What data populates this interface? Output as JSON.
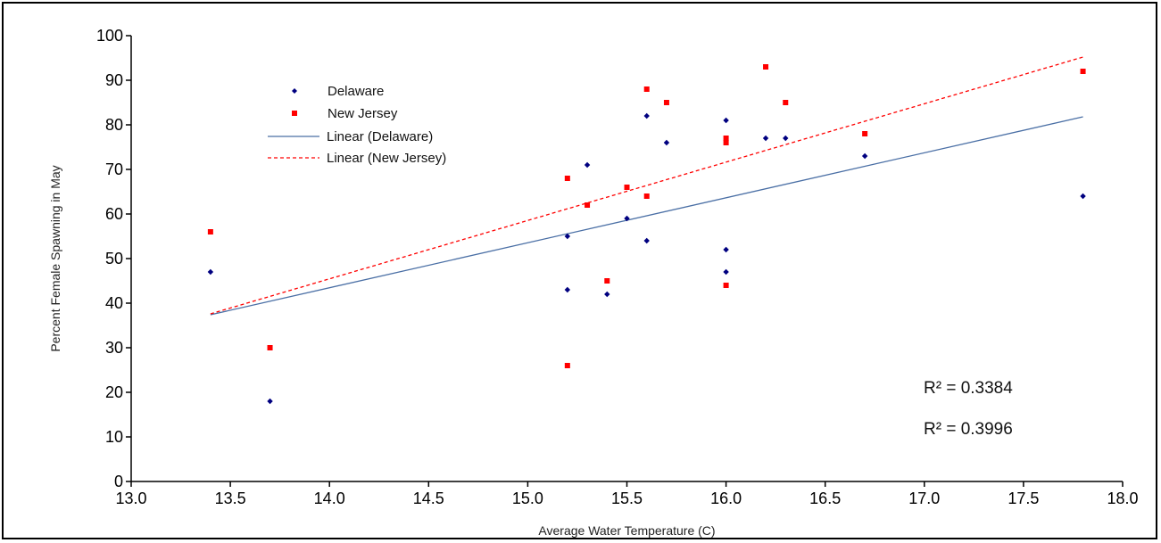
{
  "chart_data": {
    "type": "scatter",
    "title": "",
    "xlabel": "Average Water Temperature  (C)",
    "ylabel": "Percent Female Spawning in May",
    "xlim": [
      13.0,
      18.0
    ],
    "ylim": [
      0,
      100
    ],
    "x_ticks": [
      13.0,
      13.5,
      14.0,
      14.5,
      15.0,
      15.5,
      16.0,
      16.5,
      17.0,
      17.5,
      18.0
    ],
    "x_tick_labels": [
      "13.0",
      "13.5",
      "14.0",
      "14.5",
      "15.0",
      "15.5",
      "16.0",
      "16.5",
      "17.0",
      "17.5",
      "18.0"
    ],
    "y_ticks": [
      0,
      10,
      20,
      30,
      40,
      50,
      60,
      70,
      80,
      90,
      100
    ],
    "y_tick_labels": [
      "0",
      "10",
      "20",
      "30",
      "40",
      "50",
      "60",
      "70",
      "80",
      "90",
      "100"
    ],
    "grid": false,
    "legend_position": "top-left",
    "series": [
      {
        "name": "Delaware",
        "marker": "diamond",
        "color": "#000080",
        "points": [
          [
            13.4,
            47
          ],
          [
            13.7,
            18
          ],
          [
            15.2,
            55
          ],
          [
            15.2,
            43
          ],
          [
            15.3,
            71
          ],
          [
            15.4,
            42
          ],
          [
            15.5,
            59
          ],
          [
            15.6,
            82
          ],
          [
            15.6,
            54
          ],
          [
            15.7,
            76
          ],
          [
            16.0,
            81
          ],
          [
            16.0,
            52
          ],
          [
            16.0,
            47
          ],
          [
            16.2,
            77
          ],
          [
            16.3,
            77
          ],
          [
            16.7,
            73
          ],
          [
            17.8,
            64
          ]
        ]
      },
      {
        "name": "New Jersey",
        "marker": "square",
        "color": "#ff0000",
        "points": [
          [
            13.4,
            56
          ],
          [
            13.7,
            30
          ],
          [
            15.2,
            68
          ],
          [
            15.2,
            26
          ],
          [
            15.3,
            62
          ],
          [
            15.4,
            45
          ],
          [
            15.5,
            66
          ],
          [
            15.6,
            88
          ],
          [
            15.6,
            64
          ],
          [
            15.7,
            85
          ],
          [
            16.0,
            77
          ],
          [
            16.0,
            76
          ],
          [
            16.0,
            44
          ],
          [
            16.2,
            93
          ],
          [
            16.3,
            85
          ],
          [
            16.7,
            78
          ],
          [
            17.8,
            92
          ]
        ]
      }
    ],
    "trendlines": [
      {
        "name": "Linear (Delaware)",
        "style": "solid",
        "color": "#4a6fa5",
        "x": [
          13.4,
          17.8
        ],
        "y": [
          37.4,
          81.8
        ]
      },
      {
        "name": "Linear (New Jersey)",
        "style": "dashed",
        "color": "#ff0000",
        "x": [
          13.4,
          17.8
        ],
        "y": [
          37.6,
          95.2
        ]
      }
    ],
    "annotations": [
      "R² = 0.3384",
      "R² = 0.3996"
    ]
  }
}
